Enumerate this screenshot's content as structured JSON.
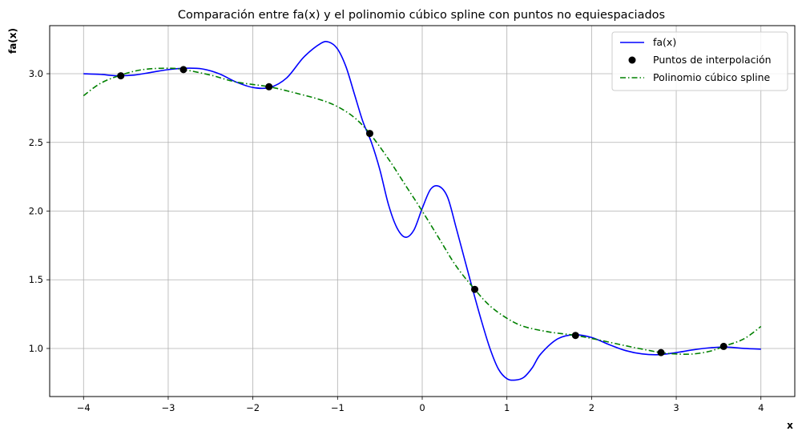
{
  "chart_data": {
    "type": "line",
    "title": "Comparación entre fa(x) y el polinomio cúbico spline con puntos no equiespaciados",
    "xlabel": "x",
    "ylabel": "fa(x)",
    "xlim": [
      -4.4,
      4.4
    ],
    "ylim": [
      0.65,
      3.35
    ],
    "xticks": [
      -4,
      -3,
      -2,
      -1,
      0,
      1,
      2,
      3,
      4
    ],
    "xtick_labels": [
      "−4",
      "−3",
      "−2",
      "−1",
      "0",
      "1",
      "2",
      "3",
      "4"
    ],
    "yticks": [
      1.0,
      1.5,
      2.0,
      2.5,
      3.0
    ],
    "ytick_labels": [
      "1.0",
      "1.5",
      "2.0",
      "2.5",
      "3.0"
    ],
    "grid": true,
    "legend_position": "top-right",
    "series": [
      {
        "name": "fa(x)",
        "kind": "line",
        "color": "#0000ff",
        "style": "solid",
        "x": [
          -4.0,
          -3.8,
          -3.6,
          -3.4,
          -3.2,
          -3.0,
          -2.8,
          -2.6,
          -2.4,
          -2.2,
          -2.0,
          -1.8,
          -1.6,
          -1.4,
          -1.2,
          -1.1,
          -1.0,
          -0.9,
          -0.8,
          -0.7,
          -0.6,
          -0.5,
          -0.4,
          -0.3,
          -0.2,
          -0.1,
          0.0,
          0.1,
          0.2,
          0.3,
          0.4,
          0.5,
          0.6,
          0.7,
          0.8,
          0.9,
          1.0,
          1.1,
          1.2,
          1.3,
          1.4,
          1.6,
          1.8,
          2.0,
          2.2,
          2.4,
          2.6,
          2.8,
          3.0,
          3.2,
          3.4,
          3.6,
          3.8,
          4.0
        ],
        "y": [
          3.0,
          2.995,
          2.985,
          2.99,
          3.01,
          3.03,
          3.04,
          3.035,
          3.0,
          2.94,
          2.9,
          2.9,
          2.97,
          3.12,
          3.22,
          3.23,
          3.18,
          3.05,
          2.85,
          2.65,
          2.5,
          2.3,
          2.05,
          1.88,
          1.81,
          1.86,
          2.02,
          2.16,
          2.18,
          2.1,
          1.88,
          1.65,
          1.42,
          1.2,
          1.0,
          0.85,
          0.78,
          0.77,
          0.79,
          0.86,
          0.96,
          1.07,
          1.1,
          1.08,
          1.03,
          0.985,
          0.96,
          0.955,
          0.97,
          0.99,
          1.005,
          1.01,
          1.0,
          0.995
        ]
      },
      {
        "name": "Puntos de interpolación",
        "kind": "scatter",
        "color": "#000000",
        "x": [
          -3.56,
          -2.82,
          -1.81,
          -0.62,
          0.62,
          1.81,
          2.82,
          3.56
        ],
        "y": [
          2.985,
          3.03,
          2.905,
          2.565,
          1.43,
          1.095,
          0.97,
          1.015
        ]
      },
      {
        "name": "Polinomio cúbico spline",
        "kind": "line",
        "color": "#008000",
        "style": "dashdot",
        "x": [
          -4.0,
          -3.8,
          -3.56,
          -3.3,
          -3.0,
          -2.82,
          -2.5,
          -2.2,
          -1.81,
          -1.5,
          -1.2,
          -1.0,
          -0.8,
          -0.62,
          -0.4,
          -0.2,
          0.0,
          0.2,
          0.4,
          0.62,
          0.8,
          1.0,
          1.2,
          1.5,
          1.81,
          2.1,
          2.4,
          2.6,
          2.82,
          3.0,
          3.2,
          3.4,
          3.56,
          3.8,
          4.0
        ],
        "y": [
          2.84,
          2.93,
          2.99,
          3.03,
          3.04,
          3.03,
          2.99,
          2.94,
          2.905,
          2.86,
          2.81,
          2.76,
          2.68,
          2.565,
          2.38,
          2.19,
          2.0,
          1.8,
          1.6,
          1.43,
          1.31,
          1.22,
          1.16,
          1.12,
          1.095,
          1.06,
          1.02,
          0.995,
          0.97,
          0.96,
          0.96,
          0.98,
          1.015,
          1.07,
          1.16
        ]
      }
    ]
  }
}
